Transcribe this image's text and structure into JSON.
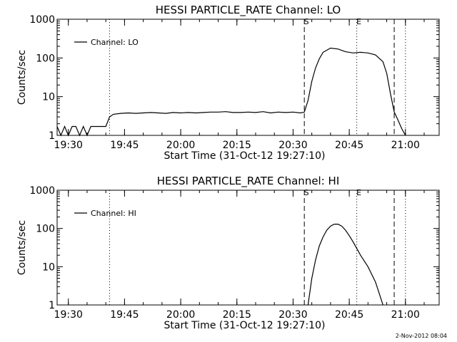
{
  "footer_date": "2-Nov-2012 08:04",
  "colors": {
    "background": "#ffffff",
    "foreground": "#000000"
  },
  "chart_data": [
    {
      "type": "line",
      "title": "HESSI PARTICLE_RATE Channel: LO",
      "xlabel": "Start Time (31-Oct-12 19:27:10)",
      "ylabel": "Counts/sec",
      "yscale": "log",
      "ylim": [
        1,
        1000
      ],
      "x_unit": "time of day (HH:MM)",
      "xlim": [
        "19:27",
        "21:09"
      ],
      "xticks": [
        "19:30",
        "19:45",
        "20:00",
        "20:15",
        "20:30",
        "20:45",
        "21:00"
      ],
      "yticks": [
        "1",
        "10",
        "100",
        "1000"
      ],
      "legend": {
        "position": "top-left"
      },
      "markers": [
        {
          "label": "",
          "x": "19:41",
          "style": "dotted"
        },
        {
          "label": "S",
          "x": "20:33",
          "style": "dashed"
        },
        {
          "label": "E",
          "x": "20:47",
          "style": "dotted"
        },
        {
          "label": "",
          "x": "20:57",
          "style": "dashed"
        },
        {
          "label": "",
          "x": "21:00",
          "style": "dotted"
        }
      ],
      "series": [
        {
          "name": "Channel: LO",
          "x": [
            "19:27",
            "19:28",
            "19:29",
            "19:30",
            "19:31",
            "19:32",
            "19:33",
            "19:34",
            "19:35",
            "19:36",
            "19:37",
            "19:38",
            "19:39",
            "19:40",
            "19:41",
            "19:42",
            "19:44",
            "19:46",
            "19:48",
            "19:50",
            "19:52",
            "19:54",
            "19:56",
            "19:58",
            "20:00",
            "20:02",
            "20:04",
            "20:06",
            "20:08",
            "20:10",
            "20:12",
            "20:14",
            "20:16",
            "20:18",
            "20:20",
            "20:22",
            "20:24",
            "20:26",
            "20:28",
            "20:30",
            "20:32",
            "20:33",
            "20:34",
            "20:35",
            "20:36",
            "20:37",
            "20:38",
            "20:40",
            "20:42",
            "20:44",
            "20:46",
            "20:48",
            "20:50",
            "20:52",
            "20:54",
            "20:55",
            "20:56",
            "20:57",
            "20:58",
            "20:59",
            "21:00"
          ],
          "y": [
            1.7,
            1,
            1.7,
            1,
            1.7,
            1.7,
            1,
            1.7,
            1,
            1.7,
            1.7,
            1.7,
            1.7,
            1.7,
            3,
            3.5,
            3.7,
            3.8,
            3.7,
            3.8,
            3.9,
            3.8,
            3.7,
            3.9,
            3.8,
            3.9,
            3.8,
            3.9,
            4.0,
            4.0,
            4.1,
            3.9,
            3.9,
            4.0,
            3.9,
            4.1,
            3.8,
            4.0,
            3.9,
            4.0,
            3.8,
            4,
            8,
            25,
            55,
            95,
            140,
            180,
            170,
            145,
            135,
            140,
            135,
            120,
            80,
            40,
            12,
            4,
            2.5,
            1.5,
            1
          ]
        }
      ]
    },
    {
      "type": "line",
      "title": "HESSI PARTICLE_RATE Channel: HI",
      "xlabel": "Start Time (31-Oct-12 19:27:10)",
      "ylabel": "Counts/sec",
      "yscale": "log",
      "ylim": [
        1,
        1000
      ],
      "x_unit": "time of day (HH:MM)",
      "xlim": [
        "19:27",
        "21:09"
      ],
      "xticks": [
        "19:30",
        "19:45",
        "20:00",
        "20:15",
        "20:30",
        "20:45",
        "21:00"
      ],
      "yticks": [
        "1",
        "10",
        "100",
        "1000"
      ],
      "legend": {
        "position": "top-left"
      },
      "markers": [
        {
          "label": "",
          "x": "19:41",
          "style": "dotted"
        },
        {
          "label": "S",
          "x": "20:33",
          "style": "dashed"
        },
        {
          "label": "E",
          "x": "20:47",
          "style": "dotted"
        },
        {
          "label": "",
          "x": "20:57",
          "style": "dashed"
        },
        {
          "label": "",
          "x": "21:00",
          "style": "dotted"
        }
      ],
      "series": [
        {
          "name": "Channel: HI",
          "x": [
            "20:34",
            "20:35",
            "20:36",
            "20:37",
            "20:38",
            "20:39",
            "20:40",
            "20:41",
            "20:42",
            "20:43",
            "20:44",
            "20:45",
            "20:46",
            "20:47",
            "20:48",
            "20:50",
            "20:52",
            "20:53",
            "20:54"
          ],
          "y": [
            1,
            5,
            15,
            35,
            60,
            90,
            115,
            130,
            130,
            115,
            90,
            65,
            45,
            30,
            20,
            10,
            4,
            2,
            1
          ]
        }
      ]
    }
  ]
}
